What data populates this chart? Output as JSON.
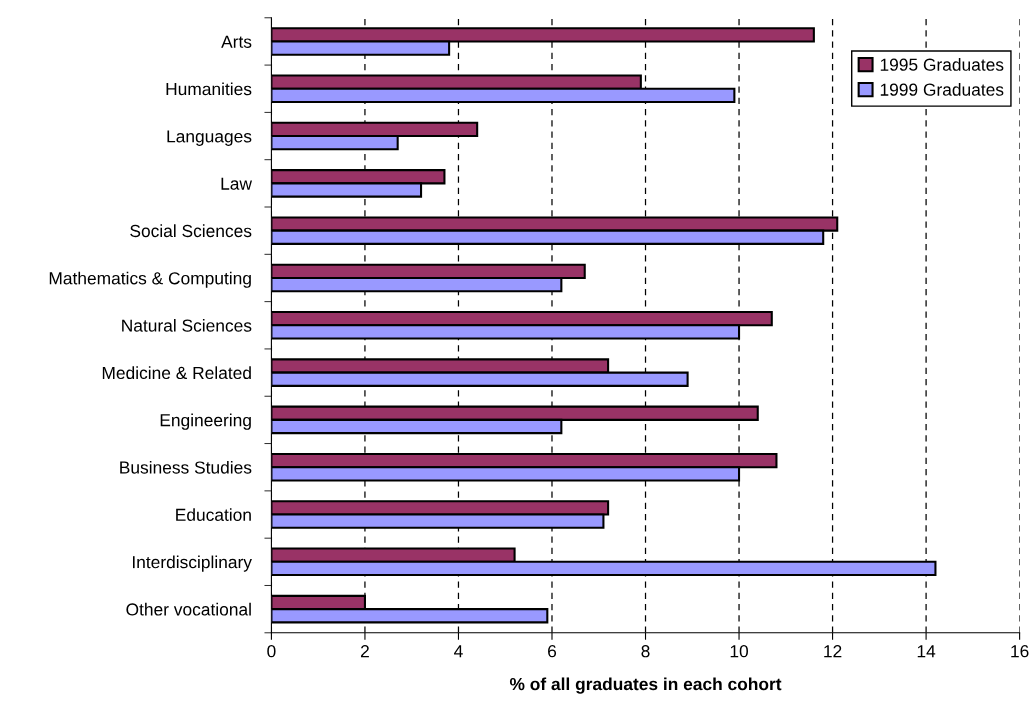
{
  "chart_data": {
    "type": "bar",
    "orientation": "horizontal",
    "xlabel": "% of all graduates in each cohort",
    "categories": [
      "Arts",
      "Humanities",
      "Languages",
      "Law",
      "Social Sciences",
      "Mathematics & Computing",
      "Natural Sciences",
      "Medicine & Related",
      "Engineering",
      "Business Studies",
      "Education",
      "Interdisciplinary",
      "Other vocational"
    ],
    "series": [
      {
        "name": "1995 Graduates",
        "color": "#993366",
        "values": [
          11.6,
          7.9,
          4.4,
          3.7,
          12.1,
          6.7,
          10.7,
          7.2,
          10.4,
          10.8,
          7.2,
          5.2,
          2.0
        ]
      },
      {
        "name": "1999 Graduates",
        "color": "#9999ff",
        "values": [
          3.8,
          9.9,
          2.7,
          3.2,
          11.8,
          6.2,
          10.0,
          8.9,
          6.2,
          10.0,
          7.1,
          14.2,
          5.9
        ]
      }
    ],
    "xlim": [
      0,
      16
    ],
    "xticks": [
      0,
      2,
      4,
      6,
      8,
      10,
      12,
      14,
      16
    ],
    "grid": "x",
    "legend": "top right"
  }
}
